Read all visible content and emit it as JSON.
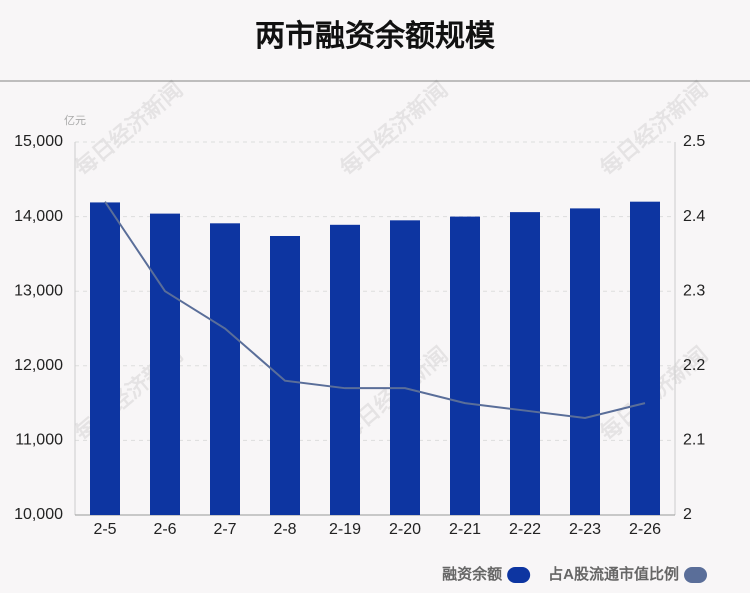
{
  "chart_data": {
    "type": "bar-line",
    "title": "两市融资余额规模",
    "y_unit": "亿元",
    "watermark": "每日经济新闻",
    "categories": [
      "2-5",
      "2-6",
      "2-7",
      "2-8",
      "2-19",
      "2-20",
      "2-21",
      "2-22",
      "2-23",
      "2-26"
    ],
    "series": [
      {
        "name": "融资余额",
        "type": "bar",
        "color": "#0d35a1",
        "values": [
          14190,
          14040,
          13910,
          13740,
          13890,
          13950,
          14000,
          14060,
          14110,
          14200
        ]
      },
      {
        "name": "占A股流通市值比例",
        "type": "line",
        "axis": "y2",
        "color": "#5a6e99",
        "values": [
          2.42,
          2.3,
          2.25,
          2.18,
          2.17,
          2.17,
          2.15,
          2.14,
          2.13,
          2.15
        ]
      }
    ],
    "ylim": [
      10000,
      15000
    ],
    "yticks": [
      {
        "value": 10000,
        "label": "10,000"
      },
      {
        "value": 11000,
        "label": "11,000"
      },
      {
        "value": 12000,
        "label": "12,000"
      },
      {
        "value": 13000,
        "label": "13,000"
      },
      {
        "value": 14000,
        "label": "14,000"
      },
      {
        "value": 15000,
        "label": "15,000"
      }
    ],
    "y2lim": [
      2,
      2.5
    ],
    "y2ticks": [
      2,
      2.1,
      2.2,
      2.3,
      2.4,
      2.5
    ],
    "grid": true,
    "legend": "bottom-right"
  }
}
